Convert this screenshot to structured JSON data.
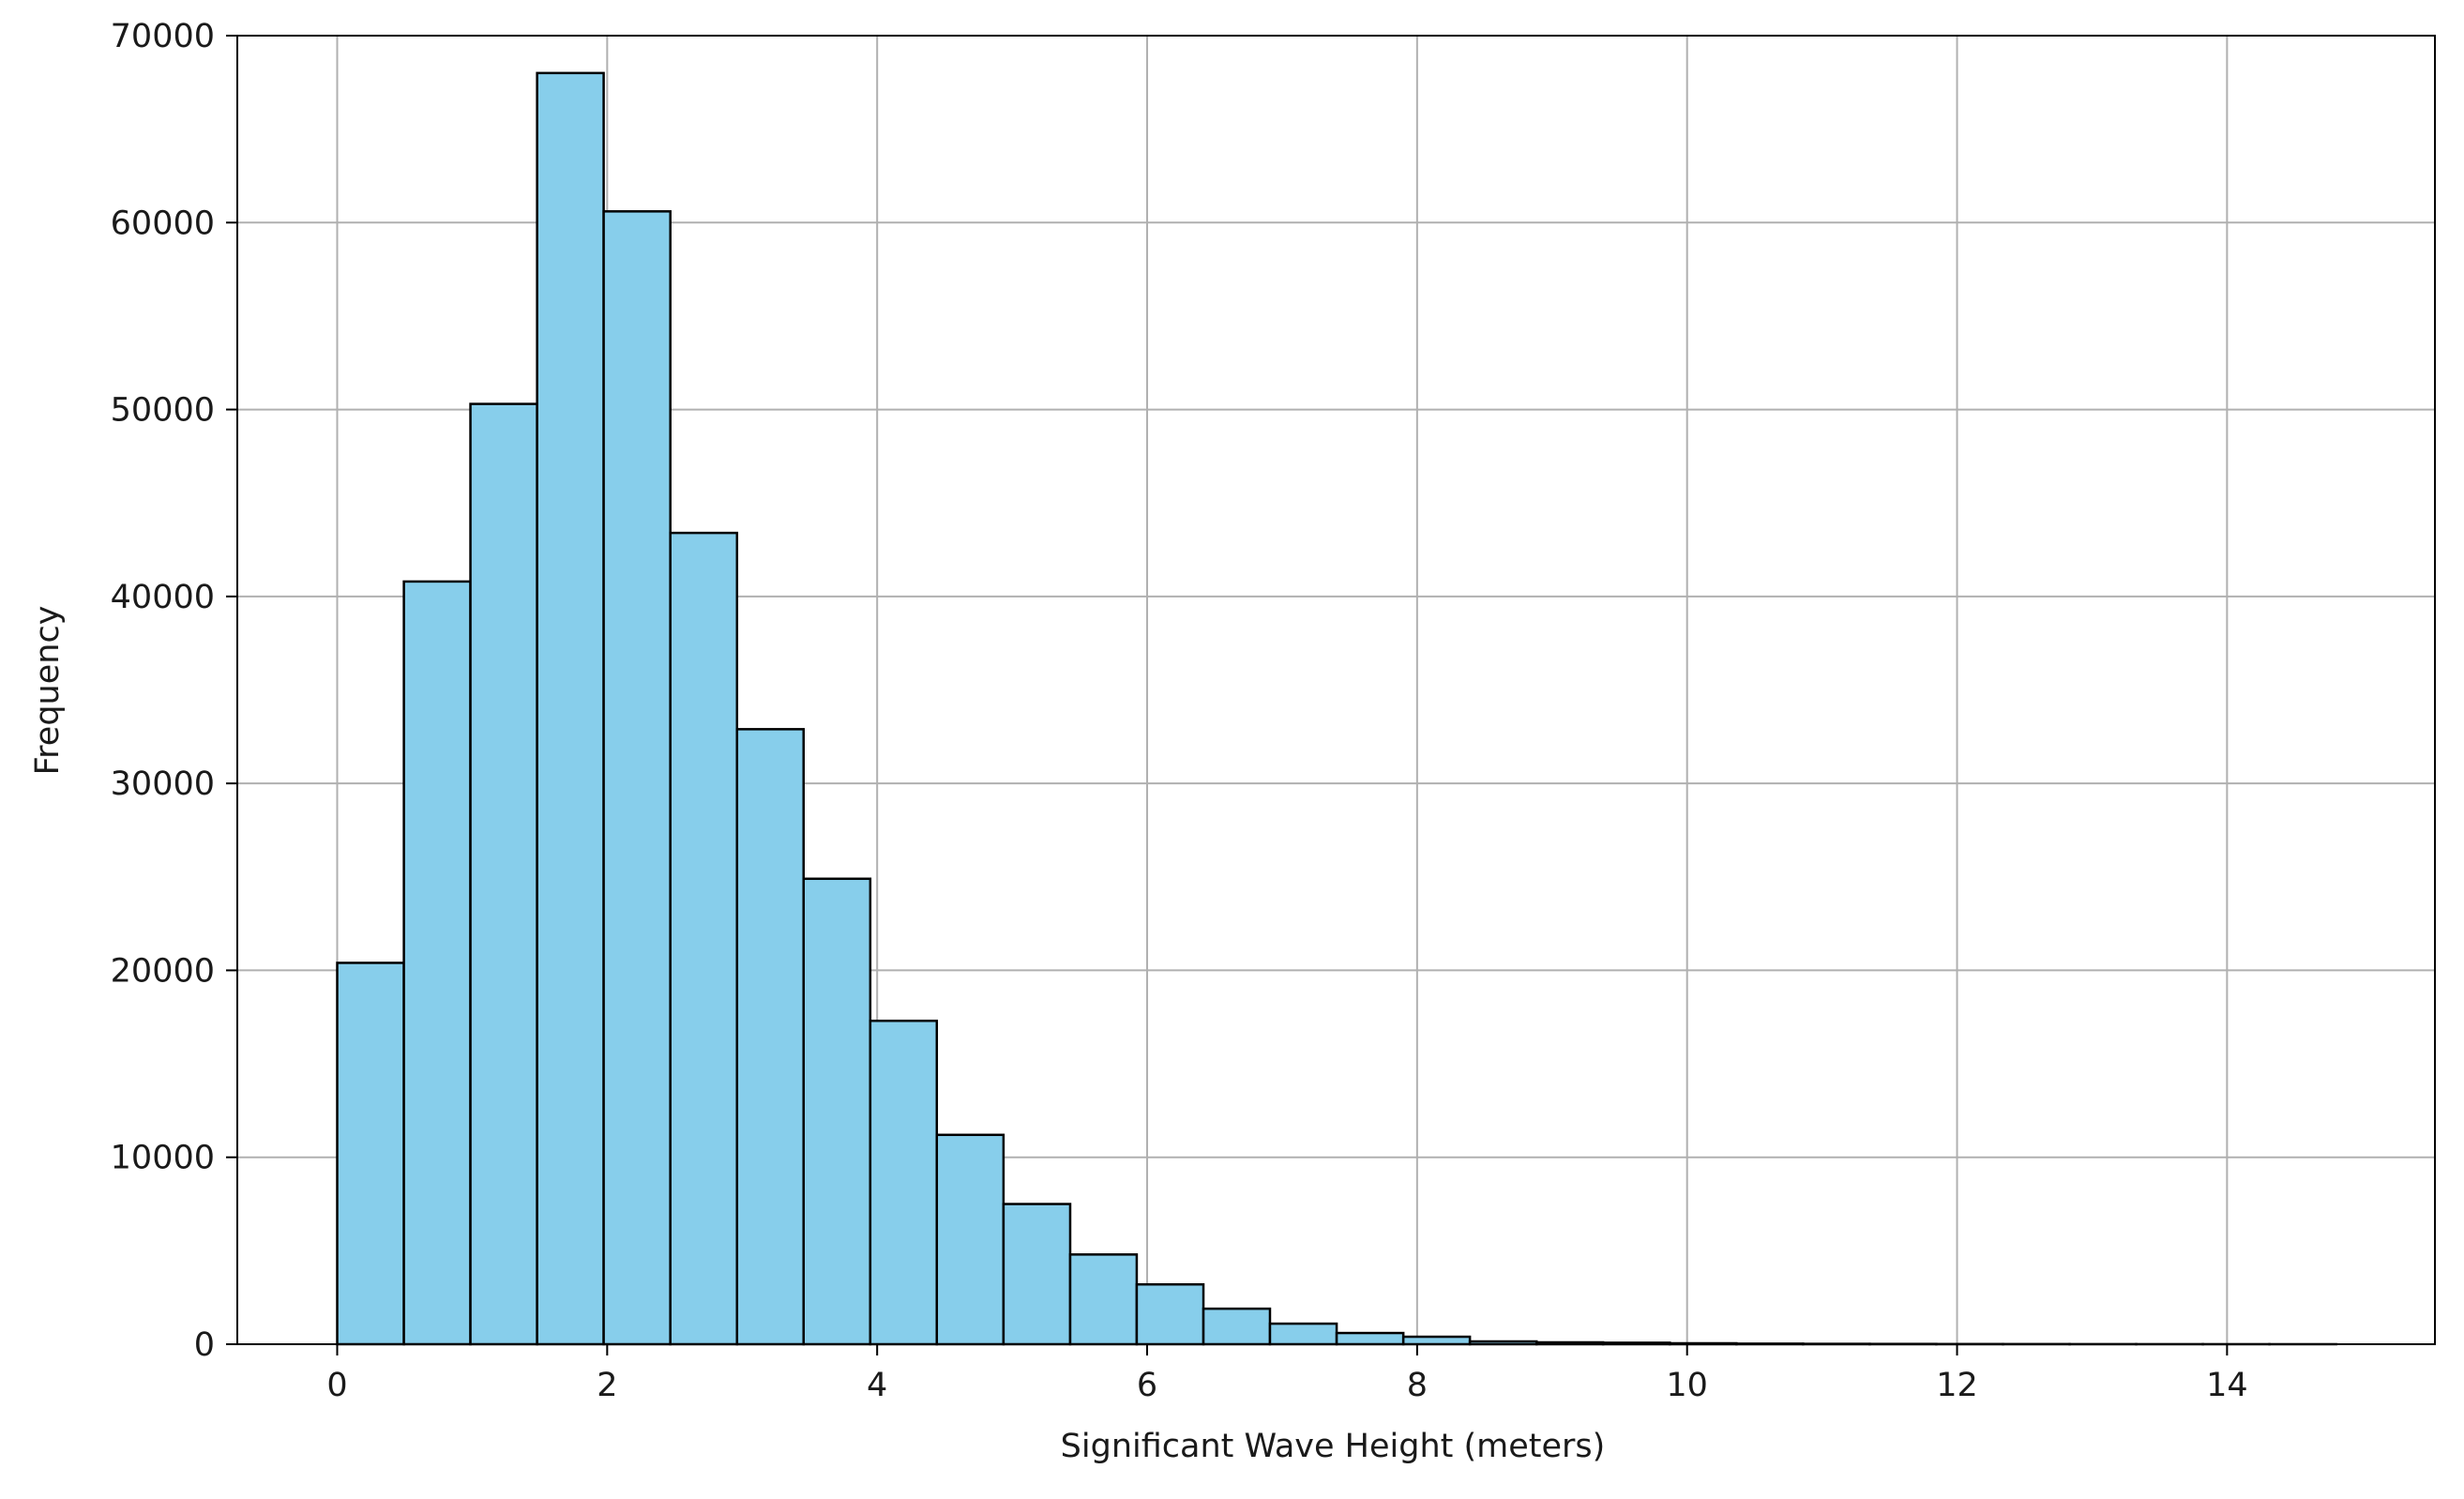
{
  "chart_data": {
    "type": "bar",
    "title": "",
    "xlabel": "Significant Wave Height (meters)",
    "ylabel": "Frequency",
    "xlim": [
      -0.74,
      15.54
    ],
    "ylim": [
      0,
      70000
    ],
    "grid": true,
    "legend": "none",
    "bar_color": "#87ceeb",
    "edge_color": "#000000",
    "grid_color": "#b0b0b0",
    "x_ticks": [
      0,
      2,
      4,
      6,
      8,
      10,
      12,
      14
    ],
    "x_tick_labels": [
      "0",
      "2",
      "4",
      "6",
      "8",
      "10",
      "12",
      "14"
    ],
    "y_ticks": [
      0,
      10000,
      20000,
      30000,
      40000,
      50000,
      60000,
      70000
    ],
    "y_tick_labels": [
      "0",
      "10000",
      "20000",
      "30000",
      "40000",
      "50000",
      "60000",
      "70000"
    ],
    "bin_edges": [
      0,
      0.494,
      0.987,
      1.481,
      1.974,
      2.468,
      2.962,
      3.455,
      3.949,
      4.442,
      4.936,
      5.43,
      5.923,
      6.417,
      6.91,
      7.404,
      7.898,
      8.391,
      8.885,
      9.378,
      9.872,
      10.366,
      10.859,
      11.353,
      11.846,
      12.34,
      12.834,
      13.327,
      13.821,
      14.314,
      14.808
    ],
    "values": [
      20400,
      40800,
      50300,
      68000,
      60600,
      43400,
      32900,
      24900,
      17300,
      11200,
      7500,
      4800,
      3200,
      1900,
      1100,
      600,
      400,
      150,
      100,
      80,
      50,
      30,
      20,
      15,
      10,
      8,
      5,
      3,
      2,
      1
    ]
  }
}
